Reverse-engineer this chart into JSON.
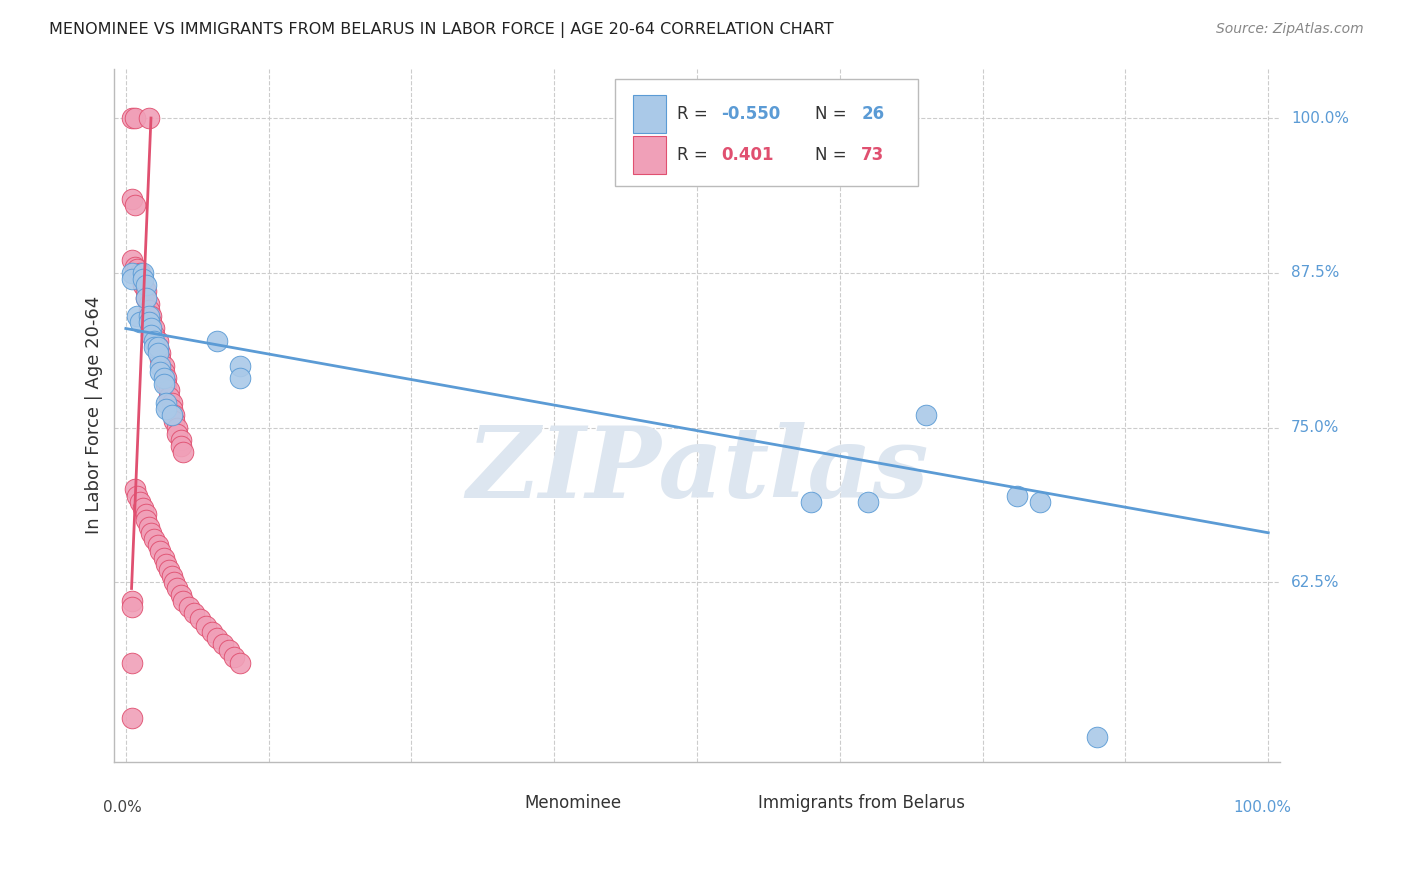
{
  "title": "MENOMINEE VS IMMIGRANTS FROM BELARUS IN LABOR FORCE | AGE 20-64 CORRELATION CHART",
  "source": "Source: ZipAtlas.com",
  "ylabel": "In Labor Force | Age 20-64",
  "ylabel_right_ticks": [
    "62.5%",
    "75.0%",
    "87.5%",
    "100.0%"
  ],
  "ylabel_right_vals": [
    0.625,
    0.75,
    0.875,
    1.0
  ],
  "menominee_scatter": [
    [
      0.005,
      0.875
    ],
    [
      0.005,
      0.87
    ],
    [
      0.01,
      0.84
    ],
    [
      0.012,
      0.835
    ],
    [
      0.015,
      0.875
    ],
    [
      0.015,
      0.87
    ],
    [
      0.018,
      0.865
    ],
    [
      0.018,
      0.855
    ],
    [
      0.02,
      0.84
    ],
    [
      0.02,
      0.835
    ],
    [
      0.022,
      0.83
    ],
    [
      0.022,
      0.825
    ],
    [
      0.025,
      0.82
    ],
    [
      0.025,
      0.815
    ],
    [
      0.028,
      0.815
    ],
    [
      0.028,
      0.81
    ],
    [
      0.03,
      0.8
    ],
    [
      0.03,
      0.795
    ],
    [
      0.033,
      0.79
    ],
    [
      0.033,
      0.785
    ],
    [
      0.035,
      0.77
    ],
    [
      0.035,
      0.765
    ],
    [
      0.04,
      0.76
    ],
    [
      0.08,
      0.82
    ],
    [
      0.1,
      0.8
    ],
    [
      0.1,
      0.79
    ],
    [
      0.6,
      0.69
    ],
    [
      0.65,
      0.69
    ],
    [
      0.7,
      0.76
    ],
    [
      0.78,
      0.695
    ],
    [
      0.8,
      0.69
    ],
    [
      0.85,
      0.5
    ]
  ],
  "belarus_scatter": [
    [
      0.005,
      1.0
    ],
    [
      0.008,
      1.0
    ],
    [
      0.02,
      1.0
    ],
    [
      0.005,
      0.935
    ],
    [
      0.008,
      0.93
    ],
    [
      0.005,
      0.885
    ],
    [
      0.008,
      0.88
    ],
    [
      0.01,
      0.878
    ],
    [
      0.012,
      0.875
    ],
    [
      0.015,
      0.87
    ],
    [
      0.015,
      0.865
    ],
    [
      0.018,
      0.86
    ],
    [
      0.018,
      0.855
    ],
    [
      0.02,
      0.85
    ],
    [
      0.02,
      0.845
    ],
    [
      0.022,
      0.84
    ],
    [
      0.022,
      0.835
    ],
    [
      0.025,
      0.83
    ],
    [
      0.025,
      0.825
    ],
    [
      0.028,
      0.82
    ],
    [
      0.028,
      0.815
    ],
    [
      0.03,
      0.81
    ],
    [
      0.03,
      0.805
    ],
    [
      0.033,
      0.8
    ],
    [
      0.033,
      0.795
    ],
    [
      0.035,
      0.79
    ],
    [
      0.035,
      0.785
    ],
    [
      0.038,
      0.78
    ],
    [
      0.038,
      0.775
    ],
    [
      0.04,
      0.77
    ],
    [
      0.04,
      0.765
    ],
    [
      0.042,
      0.76
    ],
    [
      0.042,
      0.755
    ],
    [
      0.045,
      0.75
    ],
    [
      0.045,
      0.745
    ],
    [
      0.048,
      0.74
    ],
    [
      0.048,
      0.735
    ],
    [
      0.05,
      0.73
    ],
    [
      0.008,
      0.7
    ],
    [
      0.01,
      0.695
    ],
    [
      0.012,
      0.69
    ],
    [
      0.015,
      0.685
    ],
    [
      0.018,
      0.68
    ],
    [
      0.018,
      0.675
    ],
    [
      0.02,
      0.67
    ],
    [
      0.022,
      0.665
    ],
    [
      0.025,
      0.66
    ],
    [
      0.028,
      0.655
    ],
    [
      0.03,
      0.65
    ],
    [
      0.033,
      0.645
    ],
    [
      0.005,
      0.61
    ],
    [
      0.005,
      0.605
    ],
    [
      0.035,
      0.64
    ],
    [
      0.038,
      0.635
    ],
    [
      0.04,
      0.63
    ],
    [
      0.042,
      0.625
    ],
    [
      0.045,
      0.62
    ],
    [
      0.048,
      0.615
    ],
    [
      0.05,
      0.61
    ],
    [
      0.055,
      0.605
    ],
    [
      0.06,
      0.6
    ],
    [
      0.005,
      0.56
    ],
    [
      0.065,
      0.595
    ],
    [
      0.07,
      0.59
    ],
    [
      0.075,
      0.585
    ],
    [
      0.08,
      0.58
    ],
    [
      0.085,
      0.575
    ],
    [
      0.09,
      0.57
    ],
    [
      0.095,
      0.565
    ],
    [
      0.1,
      0.56
    ],
    [
      0.005,
      0.515
    ]
  ],
  "menominee_line": {
    "x0": 0.0,
    "y0": 0.83,
    "x1": 1.0,
    "y1": 0.665
  },
  "belarus_line": {
    "x0": 0.005,
    "y0": 0.62,
    "x1": 0.022,
    "y1": 1.0
  },
  "blue_color": "#5b9bd5",
  "pink_color": "#e05070",
  "blue_scatter_color": "#aac9e8",
  "pink_scatter_color": "#f0a0b8",
  "watermark": "ZIPatlas",
  "watermark_color": "#dde6f0",
  "background_color": "#ffffff",
  "grid_color": "#cccccc",
  "ylim": [
    0.48,
    1.04
  ],
  "xlim": [
    -0.01,
    1.01
  ]
}
